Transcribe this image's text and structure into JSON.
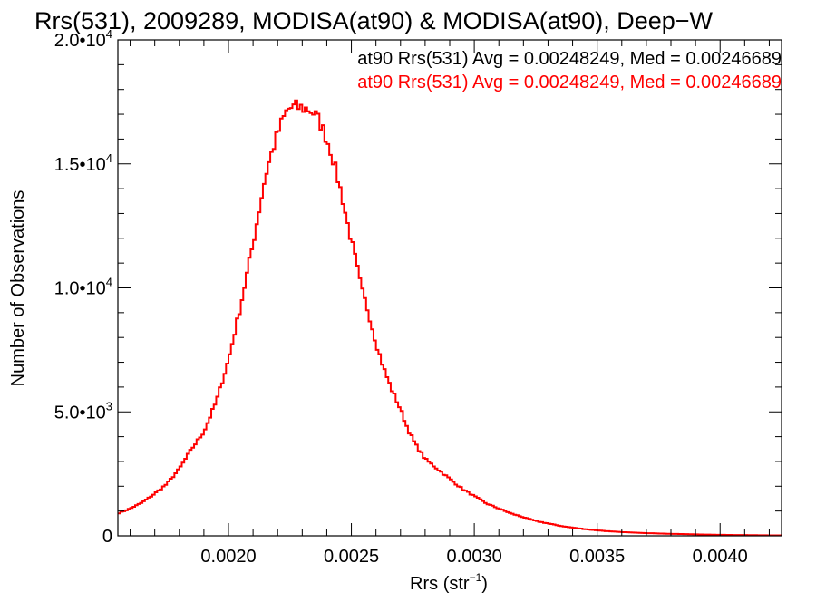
{
  "chart_data": {
    "type": "line",
    "title": "Rrs(531), 2009289, MODISA(at90) & MODISA(at90), Deep−W",
    "xlabel": "Rrs (str",
    "xlabel_sup": "−1",
    "xlabel_close": ")",
    "ylabel": "Number of Observations",
    "xlim": [
      0.00155,
      0.00425
    ],
    "ylim": [
      0,
      20000
    ],
    "grid": false,
    "x_ticks": [
      {
        "value": 0.002,
        "label": "0.0020"
      },
      {
        "value": 0.0025,
        "label": "0.0025"
      },
      {
        "value": 0.003,
        "label": "0.0030"
      },
      {
        "value": 0.0035,
        "label": "0.0035"
      },
      {
        "value": 0.004,
        "label": "0.0040"
      }
    ],
    "y_ticks": [
      {
        "value": 0,
        "mant": "0",
        "exp": ""
      },
      {
        "value": 5000,
        "mant": "5.0•10",
        "exp": "3"
      },
      {
        "value": 10000,
        "mant": "1.0•10",
        "exp": "4"
      },
      {
        "value": 15000,
        "mant": "1.5•10",
        "exp": "4"
      },
      {
        "value": 20000,
        "mant": "2.0•10",
        "exp": "4"
      }
    ],
    "annotations": [
      {
        "text": "at90 Rrs(531) Avg = 0.00248249, Med = 0.00246689",
        "color": "#000000"
      },
      {
        "text": "at90 Rrs(531) Avg = 0.00248249, Med = 0.00246689",
        "color": "#ff0000"
      }
    ],
    "series": [
      {
        "color": "#ff0000",
        "step": true,
        "x": [
          0.00155,
          0.0016,
          0.00165,
          0.0017,
          0.00175,
          0.0018,
          0.00185,
          0.0019,
          0.00195,
          0.002,
          0.00205,
          0.0021,
          0.00215,
          0.00218,
          0.00221,
          0.00224,
          0.00227,
          0.0023,
          0.00233,
          0.00236,
          0.00238,
          0.0024,
          0.00242,
          0.00244,
          0.00246,
          0.00248,
          0.0025,
          0.00252,
          0.00254,
          0.00257,
          0.0026,
          0.00263,
          0.00266,
          0.0027,
          0.00273,
          0.00276,
          0.0028,
          0.00285,
          0.0029,
          0.00295,
          0.003,
          0.00305,
          0.0031,
          0.00315,
          0.0032,
          0.00325,
          0.0033,
          0.00335,
          0.0034,
          0.00345,
          0.0035,
          0.00355,
          0.0036,
          0.0037,
          0.0038,
          0.0039,
          0.004,
          0.0041,
          0.0042,
          0.00425
        ],
        "y": [
          900,
          1100,
          1350,
          1700,
          2100,
          2700,
          3500,
          4200,
          5400,
          7100,
          9300,
          11800,
          14500,
          15600,
          16500,
          17200,
          17300,
          17250,
          17200,
          16900,
          16500,
          16000,
          15400,
          14600,
          13800,
          12800,
          11900,
          11000,
          10000,
          9000,
          7800,
          6800,
          6000,
          5100,
          4300,
          3700,
          3100,
          2700,
          2300,
          1900,
          1600,
          1300,
          1100,
          900,
          750,
          600,
          500,
          400,
          330,
          270,
          220,
          180,
          150,
          110,
          80,
          60,
          40,
          30,
          20,
          20
        ]
      }
    ]
  }
}
